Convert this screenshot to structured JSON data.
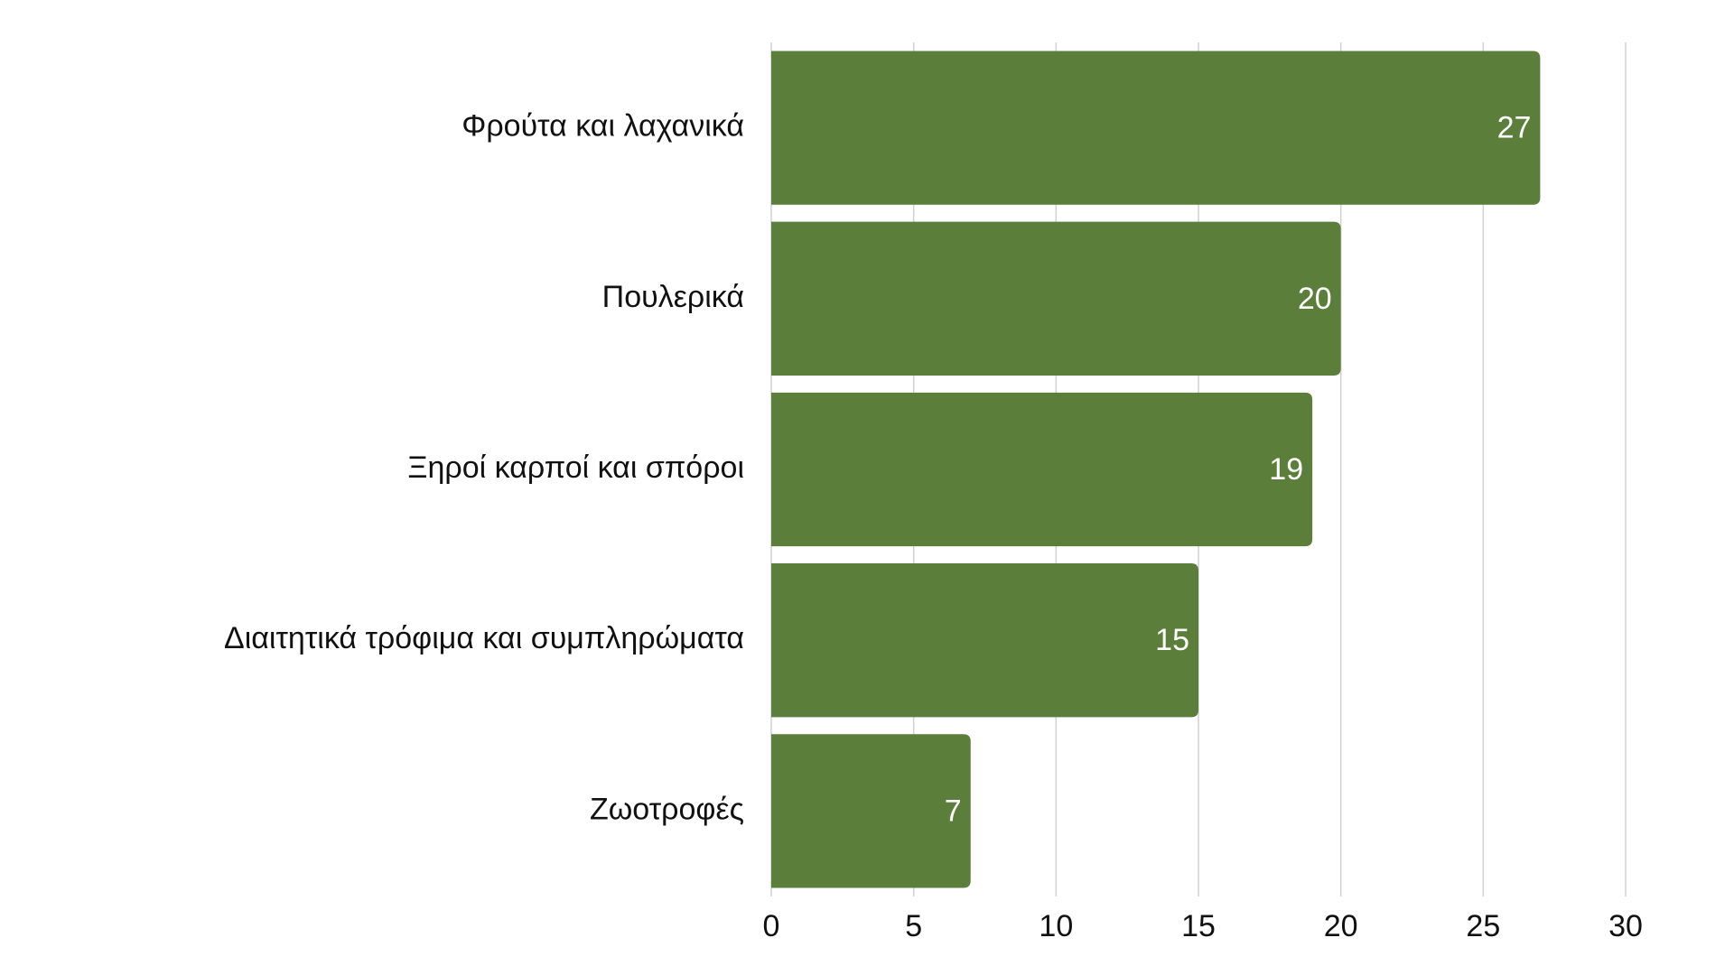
{
  "chart_data": {
    "type": "hbar",
    "categories": [
      "Φρούτα και λαχανικά",
      "Πουλερικά",
      "Ξηροί καρποί και σπόροι",
      "Διαιτητικά τρόφιμα και συμπληρώματα",
      "Ζωοτροφές"
    ],
    "values": [
      27,
      20,
      19,
      15,
      7
    ],
    "color": "#5b7f3a",
    "xlim": [
      0,
      30
    ],
    "xticks": [
      0,
      5,
      10,
      15,
      20,
      25,
      30
    ],
    "grid": true
  }
}
